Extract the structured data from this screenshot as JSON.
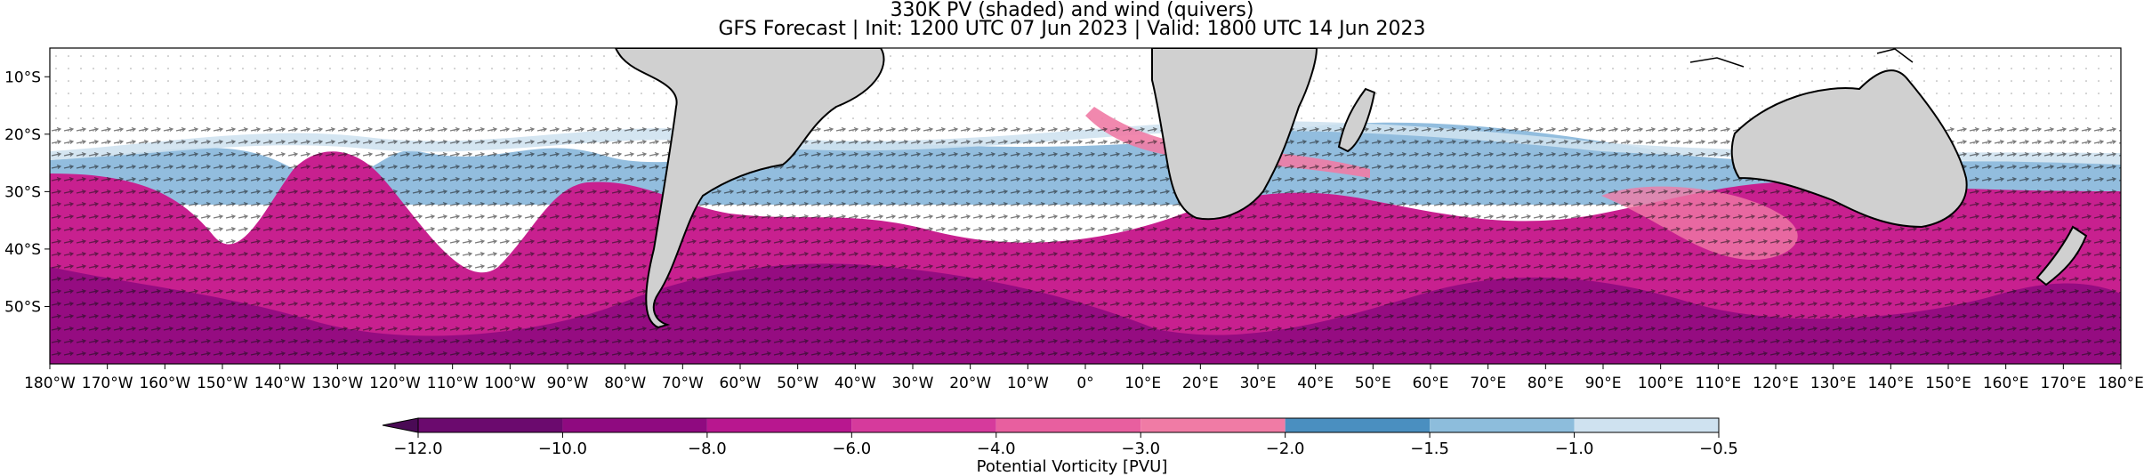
{
  "title_line1": "330K PV (shaded) and wind (quivers)",
  "title_line2": "GFS Forecast | Init: 1200 UTC 07 Jun 2023 | Valid: 1800 UTC 14 Jun 2023",
  "map": {
    "lon_range": [
      -180,
      180
    ],
    "lat_range": [
      -60,
      -5
    ],
    "lon_ticks": [
      "180°W",
      "170°W",
      "160°W",
      "150°W",
      "140°W",
      "130°W",
      "120°W",
      "110°W",
      "100°W",
      "90°W",
      "80°W",
      "70°W",
      "60°W",
      "50°W",
      "40°W",
      "30°W",
      "20°W",
      "10°W",
      "0°",
      "10°E",
      "20°E",
      "30°E",
      "40°E",
      "50°E",
      "60°E",
      "70°E",
      "80°E",
      "90°E",
      "100°E",
      "110°E",
      "120°E",
      "130°E",
      "140°E",
      "150°E",
      "160°E",
      "170°E",
      "180°E"
    ],
    "lat_ticks": [
      {
        "label": "10°S",
        "lat": -10
      },
      {
        "label": "20°S",
        "lat": -20
      },
      {
        "label": "30°S",
        "lat": -30
      },
      {
        "label": "40°S",
        "lat": -40
      },
      {
        "label": "50°S",
        "lat": -50
      }
    ],
    "land_color": "#d0d0d0",
    "coast_color": "#000000"
  },
  "colorbar": {
    "label": "Potential Vorticity [PVU]",
    "tick_labels": [
      "−12.0",
      "−10.0",
      "−8.0",
      "−6.0",
      "−4.0",
      "−3.0",
      "−2.0",
      "−1.5",
      "−1.0",
      "−0.5"
    ],
    "levels": [
      -12.0,
      -10.0,
      -8.0,
      -6.0,
      -4.0,
      -3.0,
      -2.0,
      -1.5,
      -1.0,
      -0.5
    ],
    "colors": [
      "#4a0a55",
      "#6b0a6e",
      "#8f0a80",
      "#b8178f",
      "#d63a9c",
      "#e85f9f",
      "#f07ba5",
      "#4a8fc0",
      "#8dbddc",
      "#cfe2f0"
    ]
  }
}
